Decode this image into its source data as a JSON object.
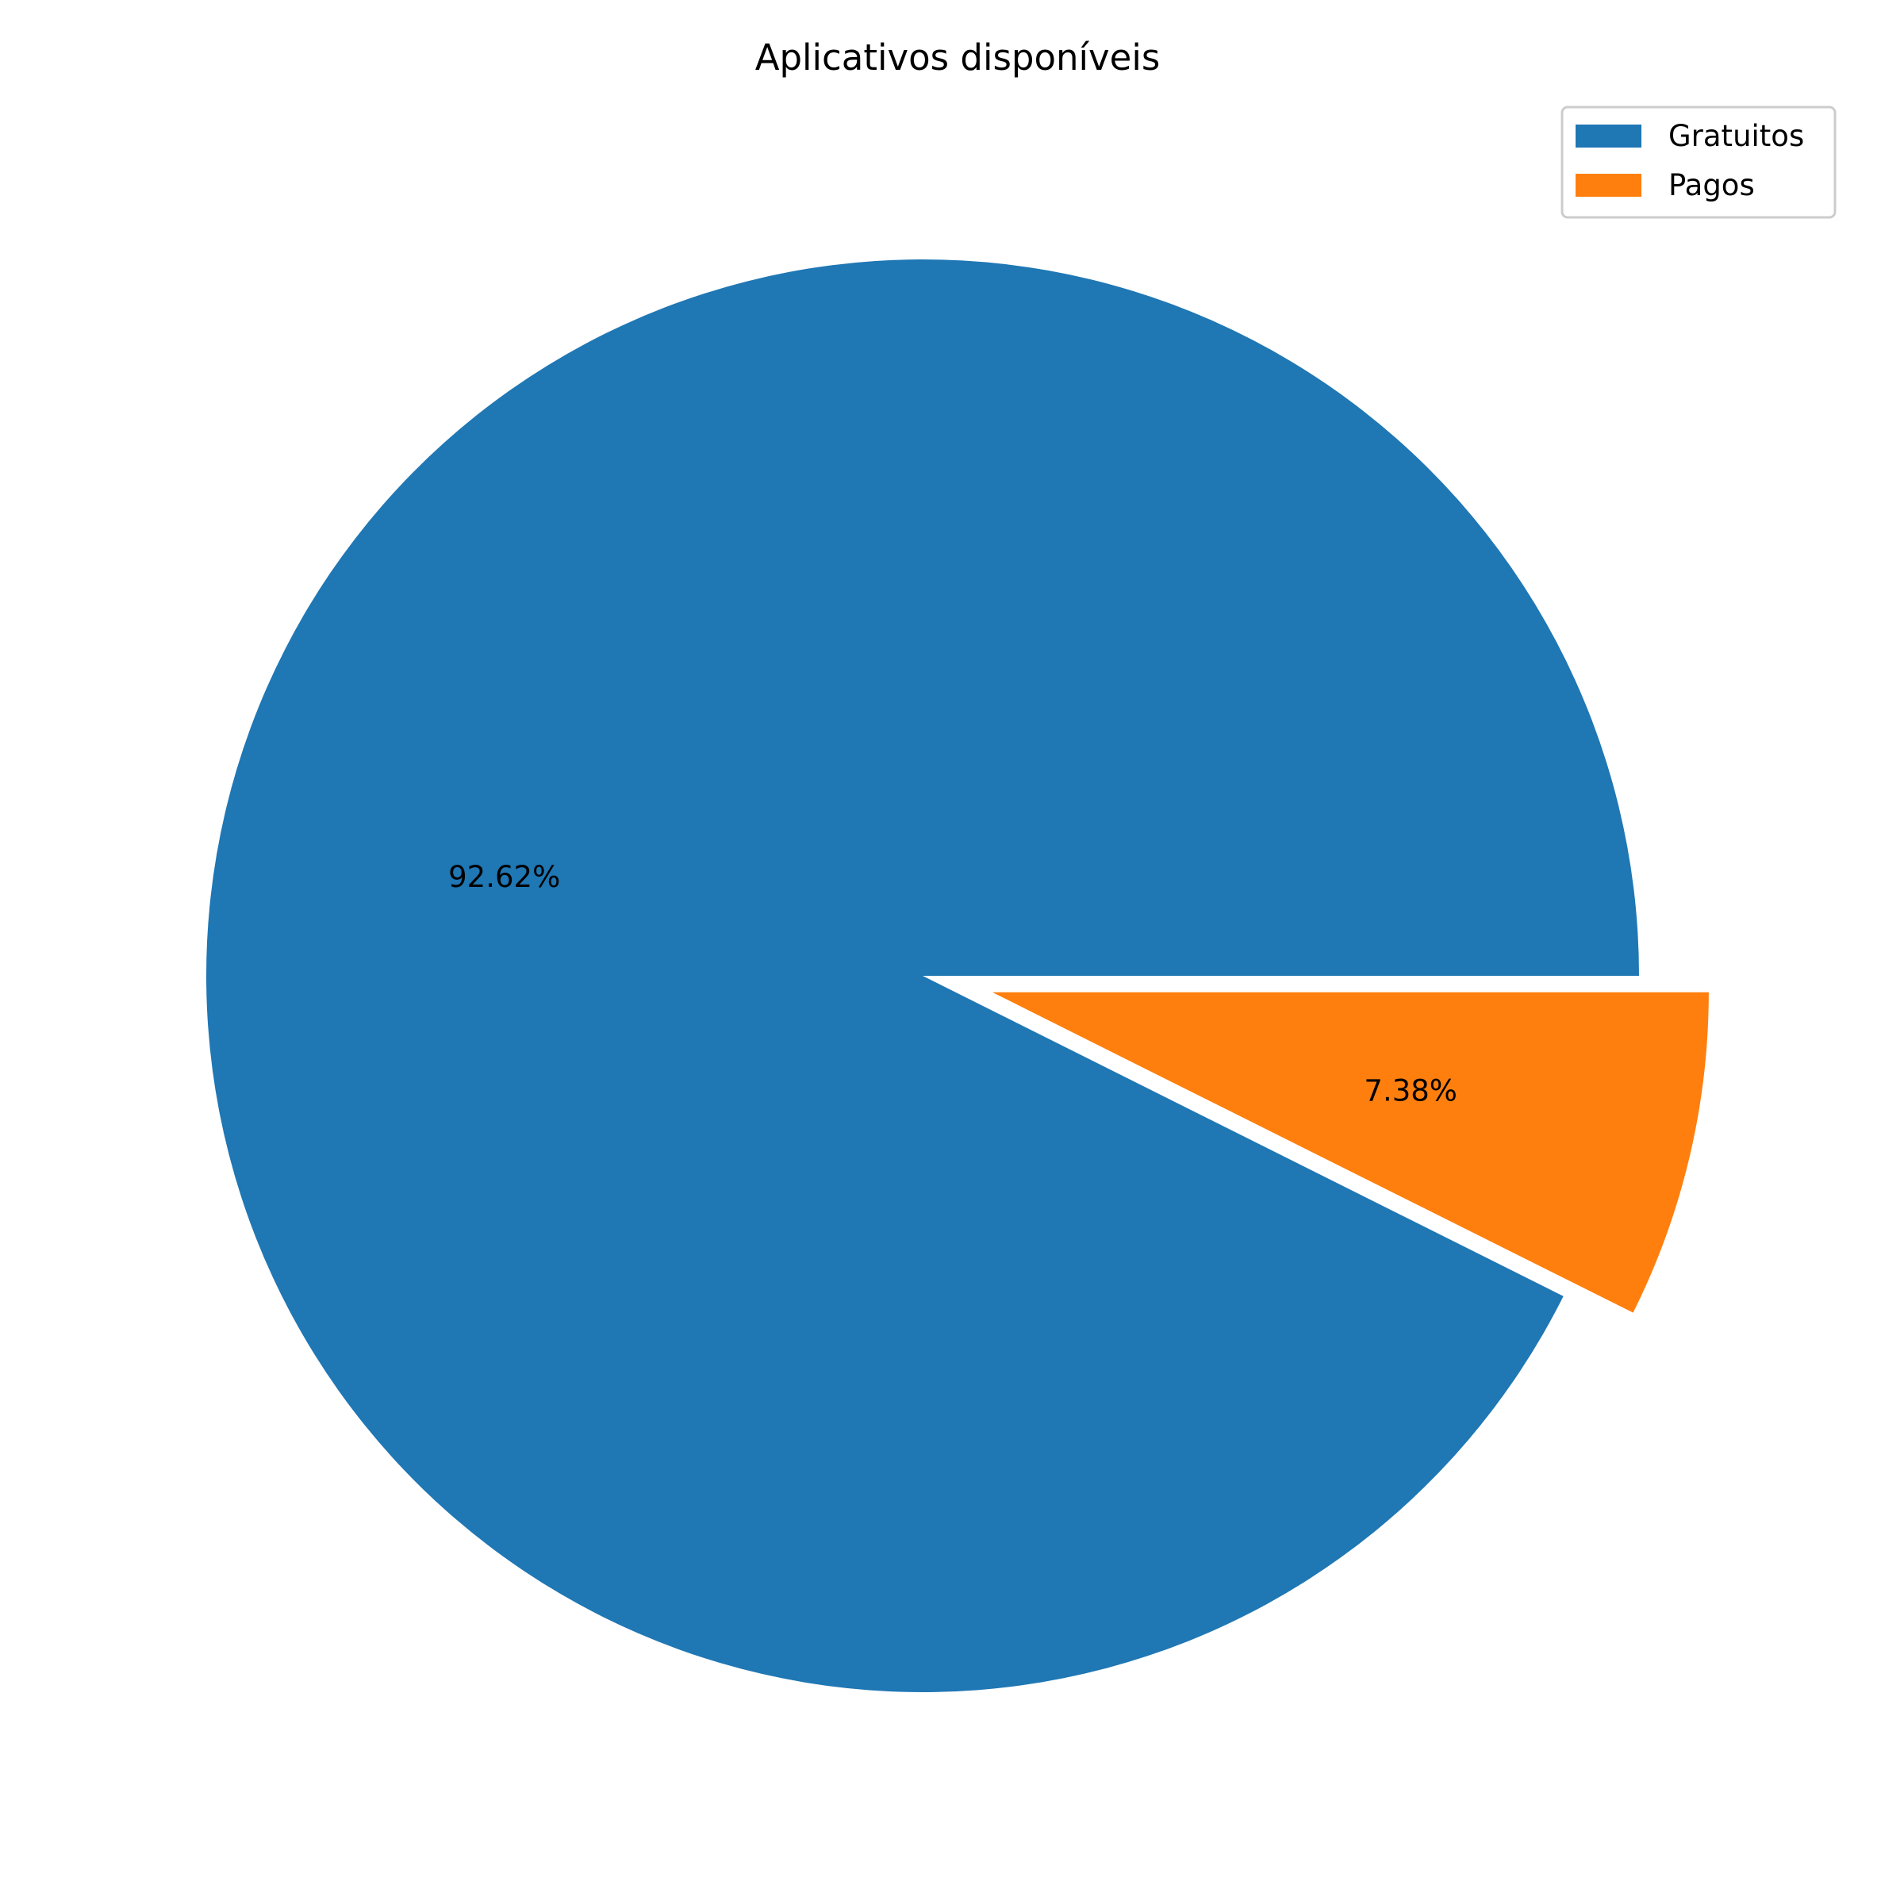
{
  "chart_data": {
    "type": "pie",
    "title": "Aplicativos disponíveis",
    "labels": [
      "Gratuitos",
      "Pagos"
    ],
    "values": [
      92.62,
      7.38
    ],
    "value_labels": [
      "92.62%",
      "7.38%"
    ],
    "colors": [
      "#1f77b4",
      "#ff7f0e"
    ],
    "explode": [
      0,
      0.1
    ],
    "start_angle_deg": 0,
    "direction": "counterclockwise",
    "legend": {
      "placement": "top-right",
      "entries": [
        "Gratuitos",
        "Pagos"
      ]
    }
  }
}
